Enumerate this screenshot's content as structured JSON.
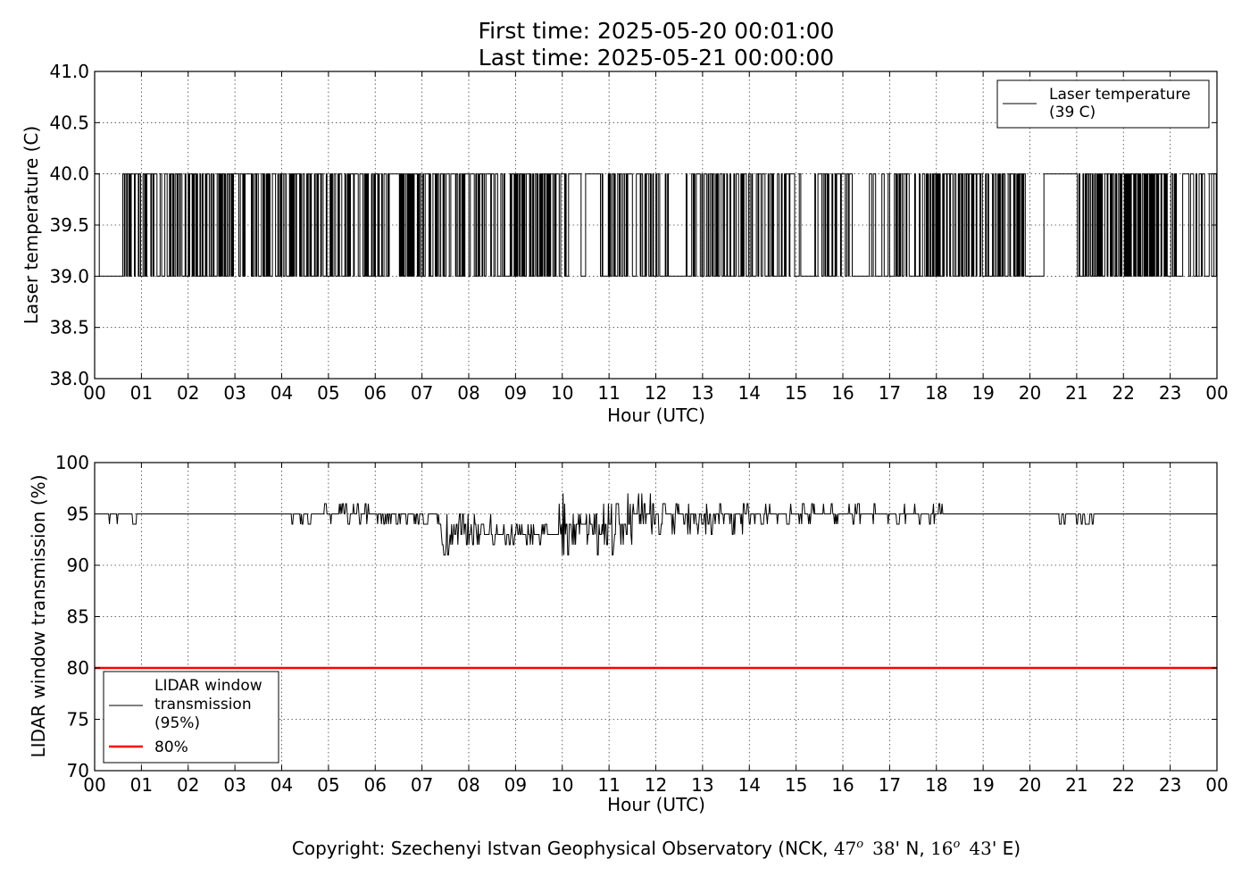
{
  "figure": {
    "title_line1": "First time: 2025-05-20 00:01:00",
    "title_line2": "Last time: 2025-05-21 00:00:00",
    "copyright_prefix": "Copyright: Szechenyi Istvan Geophysical Observatory (NCK, ",
    "lat_deg": "47",
    "lat_min": "38",
    "lat_suffix": "' N, ",
    "lon_deg": "16",
    "lon_min": "43",
    "lon_suffix": "' E)",
    "degree_mark": "o"
  },
  "chart_data": [
    {
      "type": "line",
      "xlabel": "Hour (UTC)",
      "ylabel": "Laser temperature (C)",
      "xlim": [
        0,
        24
      ],
      "ylim": [
        38.0,
        41.0
      ],
      "xticks": [
        0,
        1,
        2,
        3,
        4,
        5,
        6,
        7,
        8,
        9,
        10,
        11,
        12,
        13,
        14,
        15,
        16,
        17,
        18,
        19,
        20,
        21,
        22,
        23,
        24
      ],
      "xtick_labels": [
        "00",
        "01",
        "02",
        "03",
        "04",
        "05",
        "06",
        "07",
        "08",
        "09",
        "10",
        "11",
        "12",
        "13",
        "14",
        "15",
        "16",
        "17",
        "18",
        "19",
        "20",
        "21",
        "22",
        "23",
        "00"
      ],
      "yticks": [
        38.0,
        38.5,
        39.0,
        39.5,
        40.0,
        40.5,
        41.0
      ],
      "ytick_labels": [
        "38.0",
        "38.5",
        "39.0",
        "39.5",
        "40.0",
        "40.5",
        "41.0"
      ],
      "grid": true,
      "legend_position": "top-right",
      "series": [
        {
          "name": "Laser temperature\n(39 C)",
          "color": "#000000",
          "step_interval_hours": 0.0167,
          "segments": [
            {
              "from": 0.0,
              "to": 0.1,
              "mode": "high"
            },
            {
              "from": 0.1,
              "to": 0.6,
              "mode": "low"
            },
            {
              "from": 0.6,
              "to": 1.3,
              "mode": "switch",
              "density": 0.5
            },
            {
              "from": 1.3,
              "to": 1.6,
              "mode": "switch",
              "density": 0.3
            },
            {
              "from": 1.6,
              "to": 3.0,
              "mode": "switch",
              "density": 0.55
            },
            {
              "from": 3.0,
              "to": 3.4,
              "mode": "switch",
              "density": 0.3
            },
            {
              "from": 3.4,
              "to": 4.0,
              "mode": "switch",
              "density": 0.45
            },
            {
              "from": 4.0,
              "to": 6.3,
              "mode": "switch",
              "density": 0.55
            },
            {
              "from": 6.3,
              "to": 6.5,
              "mode": "high"
            },
            {
              "from": 6.5,
              "to": 7.4,
              "mode": "switch",
              "density": 0.6
            },
            {
              "from": 7.4,
              "to": 9.0,
              "mode": "switch",
              "density": 0.45
            },
            {
              "from": 9.0,
              "to": 9.8,
              "mode": "switch",
              "density": 0.65
            },
            {
              "from": 9.8,
              "to": 10.5,
              "mode": "switch",
              "density": 0.35
            },
            {
              "from": 10.5,
              "to": 10.8,
              "mode": "high"
            },
            {
              "from": 10.8,
              "to": 11.4,
              "mode": "switch",
              "density": 0.6
            },
            {
              "from": 11.4,
              "to": 12.3,
              "mode": "switch",
              "density": 0.45
            },
            {
              "from": 12.3,
              "to": 12.6,
              "mode": "low"
            },
            {
              "from": 12.6,
              "to": 13.9,
              "mode": "switch",
              "density": 0.5
            },
            {
              "from": 13.9,
              "to": 15.1,
              "mode": "switch",
              "density": 0.35
            },
            {
              "from": 15.1,
              "to": 15.4,
              "mode": "low"
            },
            {
              "from": 15.4,
              "to": 16.2,
              "mode": "switch",
              "density": 0.4
            },
            {
              "from": 16.2,
              "to": 16.5,
              "mode": "low"
            },
            {
              "from": 16.5,
              "to": 17.8,
              "mode": "switch",
              "density": 0.35
            },
            {
              "from": 17.8,
              "to": 18.8,
              "mode": "switch",
              "density": 0.65
            },
            {
              "from": 18.8,
              "to": 19.9,
              "mode": "switch",
              "density": 0.5
            },
            {
              "from": 19.9,
              "to": 20.3,
              "mode": "low"
            },
            {
              "from": 20.3,
              "to": 21.0,
              "mode": "high"
            },
            {
              "from": 21.0,
              "to": 23.1,
              "mode": "switch",
              "density": 0.6
            },
            {
              "from": 23.1,
              "to": 24.0,
              "mode": "switch",
              "density": 0.4
            }
          ],
          "values_low": 39.0,
          "values_high": 40.0
        }
      ]
    },
    {
      "type": "line",
      "xlabel": "Hour (UTC)",
      "ylabel": "LIDAR window transmission (%)",
      "xlim": [
        0,
        24
      ],
      "ylim": [
        70,
        100
      ],
      "xticks": [
        0,
        1,
        2,
        3,
        4,
        5,
        6,
        7,
        8,
        9,
        10,
        11,
        12,
        13,
        14,
        15,
        16,
        17,
        18,
        19,
        20,
        21,
        22,
        23,
        24
      ],
      "xtick_labels": [
        "00",
        "01",
        "02",
        "03",
        "04",
        "05",
        "06",
        "07",
        "08",
        "09",
        "10",
        "11",
        "12",
        "13",
        "14",
        "15",
        "16",
        "17",
        "18",
        "19",
        "20",
        "21",
        "22",
        "23",
        "00"
      ],
      "yticks": [
        70,
        75,
        80,
        85,
        90,
        95,
        100
      ],
      "ytick_labels": [
        "70",
        "75",
        "80",
        "85",
        "90",
        "95",
        "100"
      ],
      "grid": true,
      "legend_position": "bottom-left",
      "series": [
        {
          "name": "LIDAR window\ntransmission\n(95%)",
          "color": "#000000",
          "baseline": 95,
          "segments": [
            {
              "from": 0.0,
              "to": 0.3,
              "mode": "flat"
            },
            {
              "from": 0.3,
              "to": 0.5,
              "mode": "noise",
              "min": 94,
              "max": 95,
              "density": 0.5
            },
            {
              "from": 0.5,
              "to": 0.8,
              "mode": "flat"
            },
            {
              "from": 0.8,
              "to": 0.9,
              "mode": "noise",
              "min": 94,
              "max": 95,
              "density": 0.5
            },
            {
              "from": 0.9,
              "to": 2.1,
              "mode": "flat"
            },
            {
              "from": 2.1,
              "to": 2.2,
              "mode": "noise",
              "min": 94,
              "max": 95,
              "density": 0.5
            },
            {
              "from": 2.2,
              "to": 3.2,
              "mode": "flat"
            },
            {
              "from": 3.2,
              "to": 4.5,
              "mode": "noise",
              "min": 94,
              "max": 95,
              "density": 0.2
            },
            {
              "from": 4.5,
              "to": 6.0,
              "mode": "noise",
              "min": 94,
              "max": 96,
              "density": 0.45
            },
            {
              "from": 6.0,
              "to": 7.4,
              "mode": "noise",
              "min": 94,
              "max": 95,
              "density": 0.45
            },
            {
              "from": 7.4,
              "to": 8.5,
              "mode": "noise",
              "min": 91,
              "max": 95,
              "density": 0.6
            },
            {
              "from": 8.5,
              "to": 9.9,
              "mode": "noise",
              "min": 92,
              "max": 94,
              "density": 0.6
            },
            {
              "from": 9.9,
              "to": 11.5,
              "mode": "noise",
              "min": 91,
              "max": 97,
              "density": 0.7
            },
            {
              "from": 11.5,
              "to": 12.1,
              "mode": "noise",
              "min": 93,
              "max": 97,
              "density": 0.6
            },
            {
              "from": 12.1,
              "to": 14.0,
              "mode": "noise",
              "min": 93,
              "max": 96,
              "density": 0.55
            },
            {
              "from": 14.0,
              "to": 16.0,
              "mode": "noise",
              "min": 94,
              "max": 96,
              "density": 0.45
            },
            {
              "from": 16.0,
              "to": 18.2,
              "mode": "noise",
              "min": 94,
              "max": 96,
              "density": 0.25
            },
            {
              "from": 18.2,
              "to": 20.6,
              "mode": "flat"
            },
            {
              "from": 20.6,
              "to": 20.8,
              "mode": "noise",
              "min": 94,
              "max": 95,
              "density": 0.5
            },
            {
              "from": 20.8,
              "to": 21.0,
              "mode": "flat"
            },
            {
              "from": 21.0,
              "to": 21.4,
              "mode": "noise",
              "min": 94,
              "max": 95,
              "density": 0.5
            },
            {
              "from": 21.4,
              "to": 24.0,
              "mode": "flat"
            }
          ]
        },
        {
          "name": "80%",
          "color": "#ff0000",
          "x": [
            0,
            24
          ],
          "values": [
            80,
            80
          ]
        }
      ]
    }
  ]
}
